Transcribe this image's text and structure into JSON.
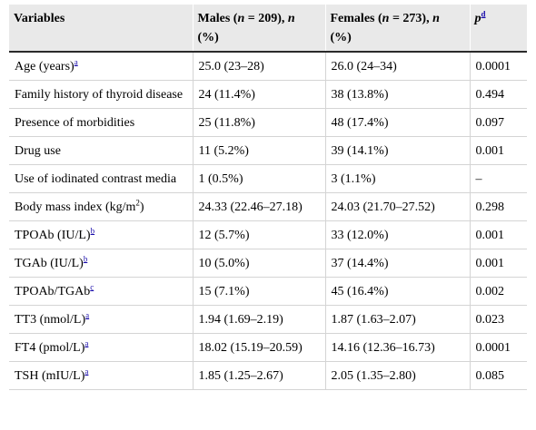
{
  "header": {
    "variables": "Variables",
    "males_prefix": "Males (",
    "males_n": "n",
    "males_count": " = 209), ",
    "males_n2": "n",
    "males_pct": "(%)",
    "females_prefix": "Females (",
    "females_n": "n",
    "females_count": " = 273), ",
    "females_n2": "n",
    "females_pct": "(%)",
    "p": "p",
    "p_sup": "d"
  },
  "rows": [
    {
      "label": "Age (years)",
      "sup": "a",
      "males": "25.0 (23–28)",
      "females": "26.0 (24–34)",
      "p": "0.0001"
    },
    {
      "label": "Family history of thyroid disease",
      "sup": "",
      "males": "24 (11.4%)",
      "females": "38 (13.8%)",
      "p": "0.494"
    },
    {
      "label": "Presence of morbidities",
      "sup": "",
      "males": "25 (11.8%)",
      "females": "48 (17.4%)",
      "p": "0.097"
    },
    {
      "label": "Drug use",
      "sup": "",
      "males": "11 (5.2%)",
      "females": "39 (14.1%)",
      "p": "0.001"
    },
    {
      "label": "Use of iodinated contrast media",
      "sup": "",
      "males": "1 (0.5%)",
      "females": "3 (1.1%)",
      "p": "–"
    },
    {
      "label": "Body mass index (kg/m",
      "unit_sup": "2",
      "label_end": ")",
      "males": "24.33 (22.46–27.18)",
      "females": "24.03 (21.70–27.52)",
      "p": "0.298"
    },
    {
      "label": "TPOAb (IU/L)",
      "sup": "b",
      "males": "12 (5.7%)",
      "females": "33 (12.0%)",
      "p": "0.001"
    },
    {
      "label": "TGAb (IU/L)",
      "sup": "b",
      "males": "10 (5.0%)",
      "females": "37 (14.4%)",
      "p": "0.001"
    },
    {
      "label": "TPOAb/TGAb",
      "sup": "c",
      "males": "15 (7.1%)",
      "females": "45 (16.4%)",
      "p": "0.002"
    },
    {
      "label": "TT3 (nmol/L)",
      "sup": "a",
      "males": "1.94 (1.69–2.19)",
      "females": "1.87 (1.63–2.07)",
      "p": "0.023"
    },
    {
      "label": "FT4 (pmol/L)",
      "sup": "a",
      "males": "18.02 (15.19–20.59)",
      "females": "14.16 (12.36–16.73)",
      "p": "0.0001"
    },
    {
      "label": "TSH (mIU/L)",
      "sup": "a",
      "males": "1.85 (1.25–2.67)",
      "females": "2.05 (1.35–2.80)",
      "p": "0.085"
    }
  ]
}
